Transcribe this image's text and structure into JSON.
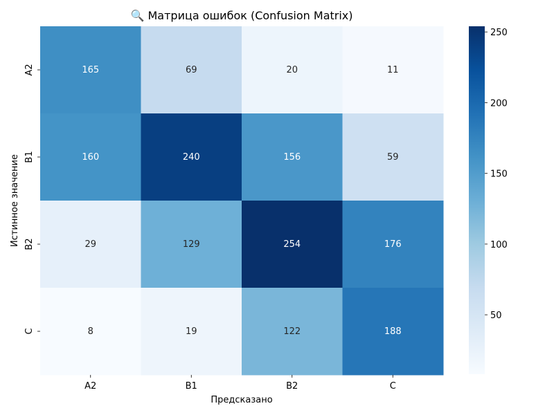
{
  "chart_data": {
    "type": "heatmap",
    "title": "🔍 Матрица ошибок (Confusion Matrix)",
    "xlabel": "Предсказано",
    "ylabel": "Истинное значение",
    "x_categories": [
      "A2",
      "B1",
      "B2",
      "C"
    ],
    "y_categories": [
      "A2",
      "B1",
      "B2",
      "C"
    ],
    "values": [
      [
        165,
        69,
        20,
        11
      ],
      [
        160,
        240,
        156,
        59
      ],
      [
        29,
        129,
        254,
        176
      ],
      [
        8,
        19,
        122,
        188
      ]
    ],
    "colorbar": {
      "min": 8,
      "max": 254,
      "ticks": [
        50,
        100,
        150,
        200,
        250
      ],
      "colormap": "Blues"
    }
  }
}
